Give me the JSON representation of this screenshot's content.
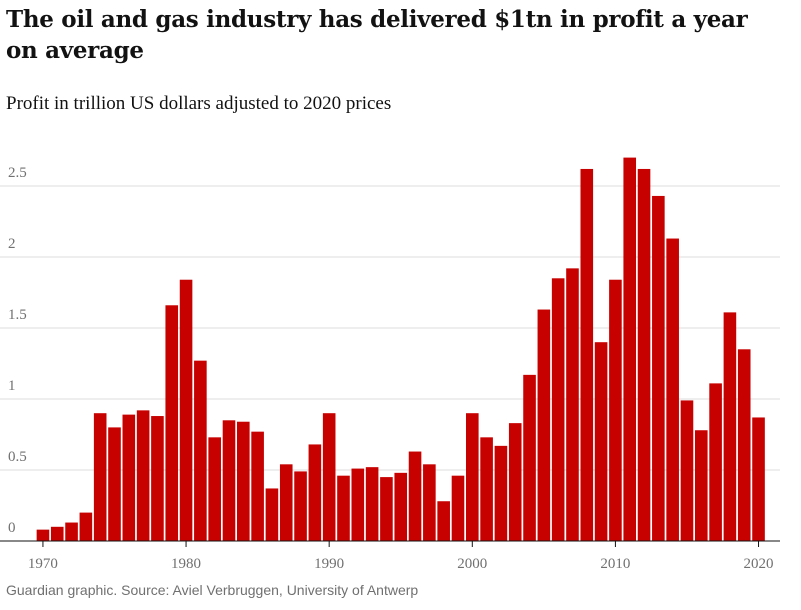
{
  "chart_data": {
    "type": "bar",
    "title": "The oil and gas industry has delivered $1tn in profit a year on average",
    "subtitle": "Profit in trillion US dollars adjusted to 2020 prices",
    "source": "Guardian graphic. Source: Aviel Verbruggen, University of Antwerp",
    "x": [
      1970,
      1971,
      1972,
      1973,
      1974,
      1975,
      1976,
      1977,
      1978,
      1979,
      1980,
      1981,
      1982,
      1983,
      1984,
      1985,
      1986,
      1987,
      1988,
      1989,
      1990,
      1991,
      1992,
      1993,
      1994,
      1995,
      1996,
      1997,
      1998,
      1999,
      2000,
      2001,
      2002,
      2003,
      2004,
      2005,
      2006,
      2007,
      2008,
      2009,
      2010,
      2011,
      2012,
      2013,
      2014,
      2015,
      2016,
      2017,
      2018,
      2019,
      2020
    ],
    "values": [
      0.08,
      0.1,
      0.13,
      0.2,
      0.9,
      0.8,
      0.89,
      0.92,
      0.88,
      1.66,
      1.84,
      1.27,
      0.73,
      0.85,
      0.84,
      0.77,
      0.37,
      0.54,
      0.49,
      0.68,
      0.9,
      0.46,
      0.51,
      0.52,
      0.45,
      0.48,
      0.63,
      0.54,
      0.28,
      0.46,
      0.9,
      0.73,
      0.67,
      0.83,
      1.17,
      1.63,
      1.85,
      1.92,
      2.62,
      1.4,
      1.84,
      2.7,
      2.62,
      2.43,
      2.13,
      0.99,
      0.78,
      1.11,
      1.61,
      1.35,
      0.87
    ],
    "color": "#c70000",
    "xlim": [
      1967,
      2021.5
    ],
    "xticks": [
      1970,
      1980,
      1990,
      2000,
      2010,
      2020
    ],
    "ylim": [
      0,
      2.75
    ],
    "yticks": [
      0,
      0.5,
      1,
      1.5,
      2,
      2.5
    ],
    "grid": true
  }
}
